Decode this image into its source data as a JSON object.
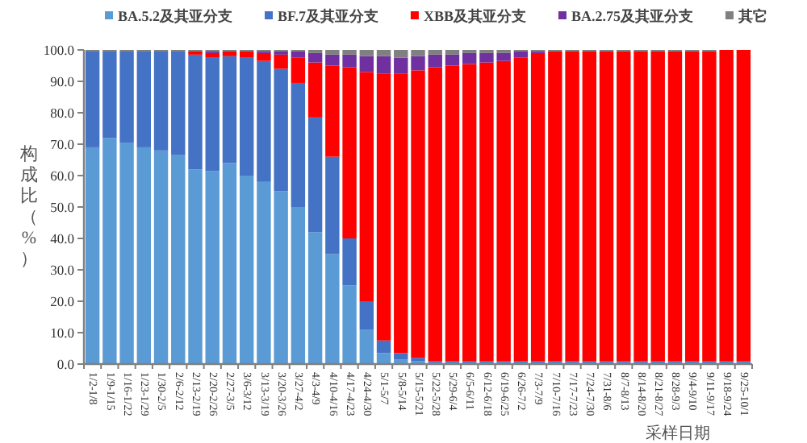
{
  "chart_data": {
    "type": "bar",
    "stacked": true,
    "xlabel": "采样日期",
    "ylabel": "构成比（%）",
    "legend": "top",
    "grid": false,
    "categories": [
      "1/2-1/8",
      "1/9-1/15",
      "1/16-1/22",
      "1/23-1/29",
      "1/30-2/5",
      "2/6-2/12",
      "2/13-2/19",
      "2/20-2/26",
      "2/27-3/5",
      "3/6-3/12",
      "3/13-3/19",
      "3/20-3/26",
      "3/27-4/2",
      "4/3-4/9",
      "4/10-4/16",
      "4/17-4/23",
      "4/24-4/30",
      "5/1-5/7",
      "5/8-5/14",
      "5/15-5/21",
      "5/22-5/28",
      "5/29-6/4",
      "6/5-6/11",
      "6/12-6/18",
      "6/19-6/25",
      "6/26-7/2",
      "7/3-7/9",
      "7/10-7/16",
      "7/17-7/23",
      "7/24-7/30",
      "7/31-8/6",
      "8/7-8/13",
      "8/14-8/20",
      "8/21-8/27",
      "8/28-9/3",
      "9/4-9/10",
      "9/11-9/17",
      "9/18-9/24",
      "9/25-10/1"
    ],
    "ylim": [
      0,
      100
    ],
    "yticks": [
      {
        "value": 0,
        "label": "0.0"
      },
      {
        "value": 10,
        "label": "10.0"
      },
      {
        "value": 20,
        "label": "20.0"
      },
      {
        "value": 30,
        "label": "30.0"
      },
      {
        "value": 40,
        "label": "40.0"
      },
      {
        "value": 50,
        "label": "50.0"
      },
      {
        "value": 60,
        "label": "60.0"
      },
      {
        "value": 70,
        "label": "70.0"
      },
      {
        "value": 80,
        "label": "80.0"
      },
      {
        "value": 90,
        "label": "90.0"
      },
      {
        "value": 100,
        "label": "100.0"
      }
    ],
    "series": [
      {
        "name": "BA.5.2及其亚分支",
        "color": "#5b9bd5",
        "values": [
          69,
          72,
          70.5,
          69,
          68,
          66.5,
          62,
          61.5,
          64,
          60,
          58,
          55,
          50,
          42,
          35,
          25,
          11,
          3.5,
          1.5,
          1,
          0.5,
          0.5,
          0.5,
          0.5,
          0.5,
          0.5,
          0.5,
          0.5,
          0.5,
          0.5,
          0.5,
          0.5,
          0.5,
          0.5,
          0.5,
          0.5,
          0.5,
          0.5,
          0.5
        ]
      },
      {
        "name": "BF.7及其亚分支",
        "color": "#4472c4",
        "values": [
          30.5,
          27.5,
          29,
          30.5,
          31.5,
          33,
          36.5,
          36,
          34,
          37.5,
          38.5,
          39,
          39.5,
          36.5,
          31,
          15,
          9,
          4,
          2,
          1,
          0.5,
          0.5,
          0.5,
          0.5,
          0.5,
          0.5,
          0.5,
          0.5,
          0.5,
          0.5,
          0.5,
          0.5,
          0.5,
          0.5,
          0.5,
          0.5,
          0.5,
          0.5,
          0.5
        ]
      },
      {
        "name": "XBB及其亚分支",
        "color": "#ff0000",
        "values": [
          0,
          0,
          0,
          0,
          0,
          0,
          1,
          1.5,
          1.5,
          2,
          2.5,
          4.5,
          8,
          17.5,
          29,
          54.5,
          73,
          85,
          89,
          91.5,
          93.5,
          94,
          94.5,
          95,
          95.5,
          96.5,
          98,
          98.5,
          98.5,
          98.5,
          98.5,
          98.5,
          98.5,
          98.5,
          98.5,
          98.5,
          98.5,
          99,
          99
        ]
      },
      {
        "name": "BA.2.75及其亚分支",
        "color": "#7030a0",
        "values": [
          0,
          0,
          0,
          0,
          0,
          0,
          0,
          0.5,
          0,
          0,
          0.5,
          1,
          2,
          3,
          3.5,
          4,
          5,
          5.5,
          5,
          4.5,
          4,
          3.5,
          3.5,
          3,
          2.5,
          2,
          0.5,
          0,
          0,
          0,
          0,
          0,
          0,
          0,
          0,
          0,
          0,
          0,
          0
        ]
      },
      {
        "name": "其它",
        "color": "#808080",
        "values": [
          0.5,
          0.5,
          0.5,
          0.5,
          0.5,
          0.5,
          0.5,
          0.5,
          0.5,
          0.5,
          0.5,
          0.5,
          0.5,
          1,
          1.5,
          1.5,
          2,
          2,
          2.5,
          2,
          1.5,
          1.5,
          1,
          1,
          1,
          0.5,
          0.5,
          0.5,
          0.5,
          0.5,
          0.5,
          0.5,
          0.5,
          0.5,
          0.5,
          0.5,
          0.5,
          0,
          0
        ]
      }
    ]
  }
}
